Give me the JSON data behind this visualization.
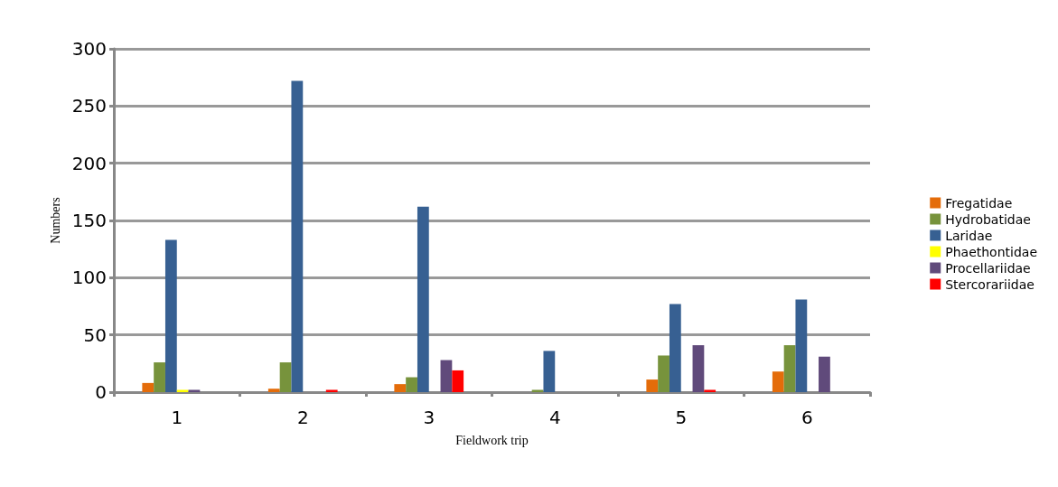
{
  "chart_data": {
    "type": "bar",
    "xlabel": "Fieldwork trip",
    "ylabel": "Numbers",
    "categories": [
      "1",
      "2",
      "3",
      "4",
      "5",
      "6"
    ],
    "series": [
      {
        "name": "Fregatidae",
        "color": "#e46c0a",
        "values": [
          8,
          3,
          7,
          0,
          11,
          18
        ]
      },
      {
        "name": "Hydrobatidae",
        "color": "#77933c",
        "values": [
          26,
          26,
          13,
          2,
          32,
          41
        ]
      },
      {
        "name": "Laridae",
        "color": "#376092",
        "values": [
          133,
          272,
          162,
          36,
          77,
          81
        ]
      },
      {
        "name": "Phaethontidae",
        "color": "#ffff00",
        "values": [
          2,
          0,
          0,
          0,
          0,
          0
        ]
      },
      {
        "name": "Procellariidae",
        "color": "#604a7b",
        "values": [
          2,
          0,
          28,
          0,
          41,
          31
        ]
      },
      {
        "name": "Stercorariidae",
        "color": "#ff0000",
        "values": [
          0,
          2,
          19,
          0,
          2,
          0
        ]
      }
    ],
    "ylim": [
      0,
      300
    ],
    "yticks": [
      0,
      50,
      100,
      150,
      200,
      250,
      300
    ],
    "grid": "y",
    "legend": "right"
  }
}
